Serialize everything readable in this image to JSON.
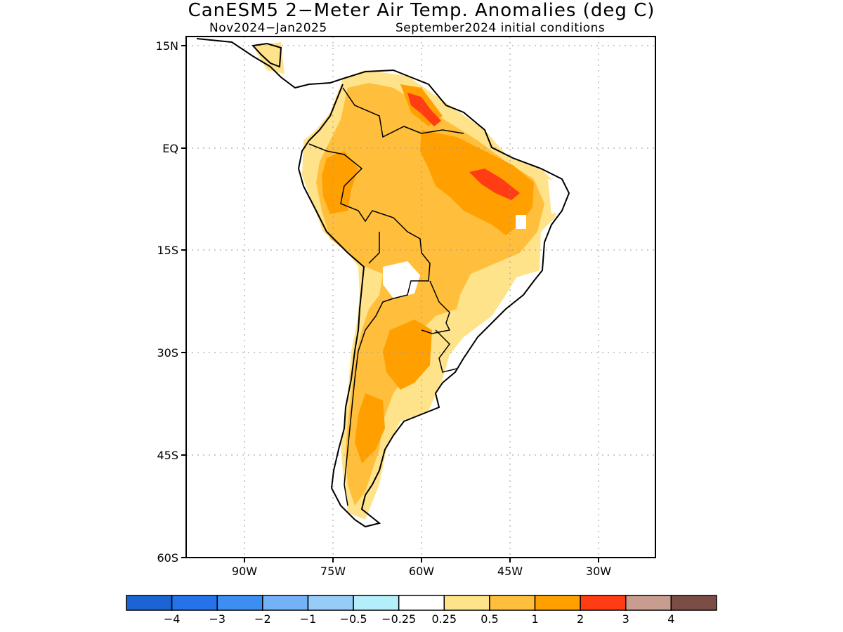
{
  "title": "CanESM5 2−Meter Air Temp. Anomalies (deg C)",
  "subtitle_left": "Nov2024−Jan2025",
  "subtitle_right": "September2024 initial conditions",
  "map": {
    "lat_labels": [
      "15N",
      "EQ",
      "15S",
      "30S",
      "45S",
      "60S"
    ],
    "lon_labels": [
      "90W",
      "75W",
      "60W",
      "45W",
      "30W"
    ],
    "lat_range": [
      -60,
      15
    ],
    "lon_range": [
      -100,
      -20
    ],
    "grid": true
  },
  "colorbar": {
    "colors": [
      "#1a64d4",
      "#2572ea",
      "#3c8ef2",
      "#74b2f7",
      "#96ccf7",
      "#b4eefa",
      "#ffffff",
      "#ffe38a",
      "#ffbf3c",
      "#ffa000",
      "#ff3c14",
      "#c89c8e",
      "#7a4e44"
    ],
    "labels": [
      "−4",
      "−3",
      "−2",
      "−1",
      "−0.5",
      "−0.25",
      "0.25",
      "0.5",
      "1",
      "2",
      "3",
      "4"
    ]
  }
}
